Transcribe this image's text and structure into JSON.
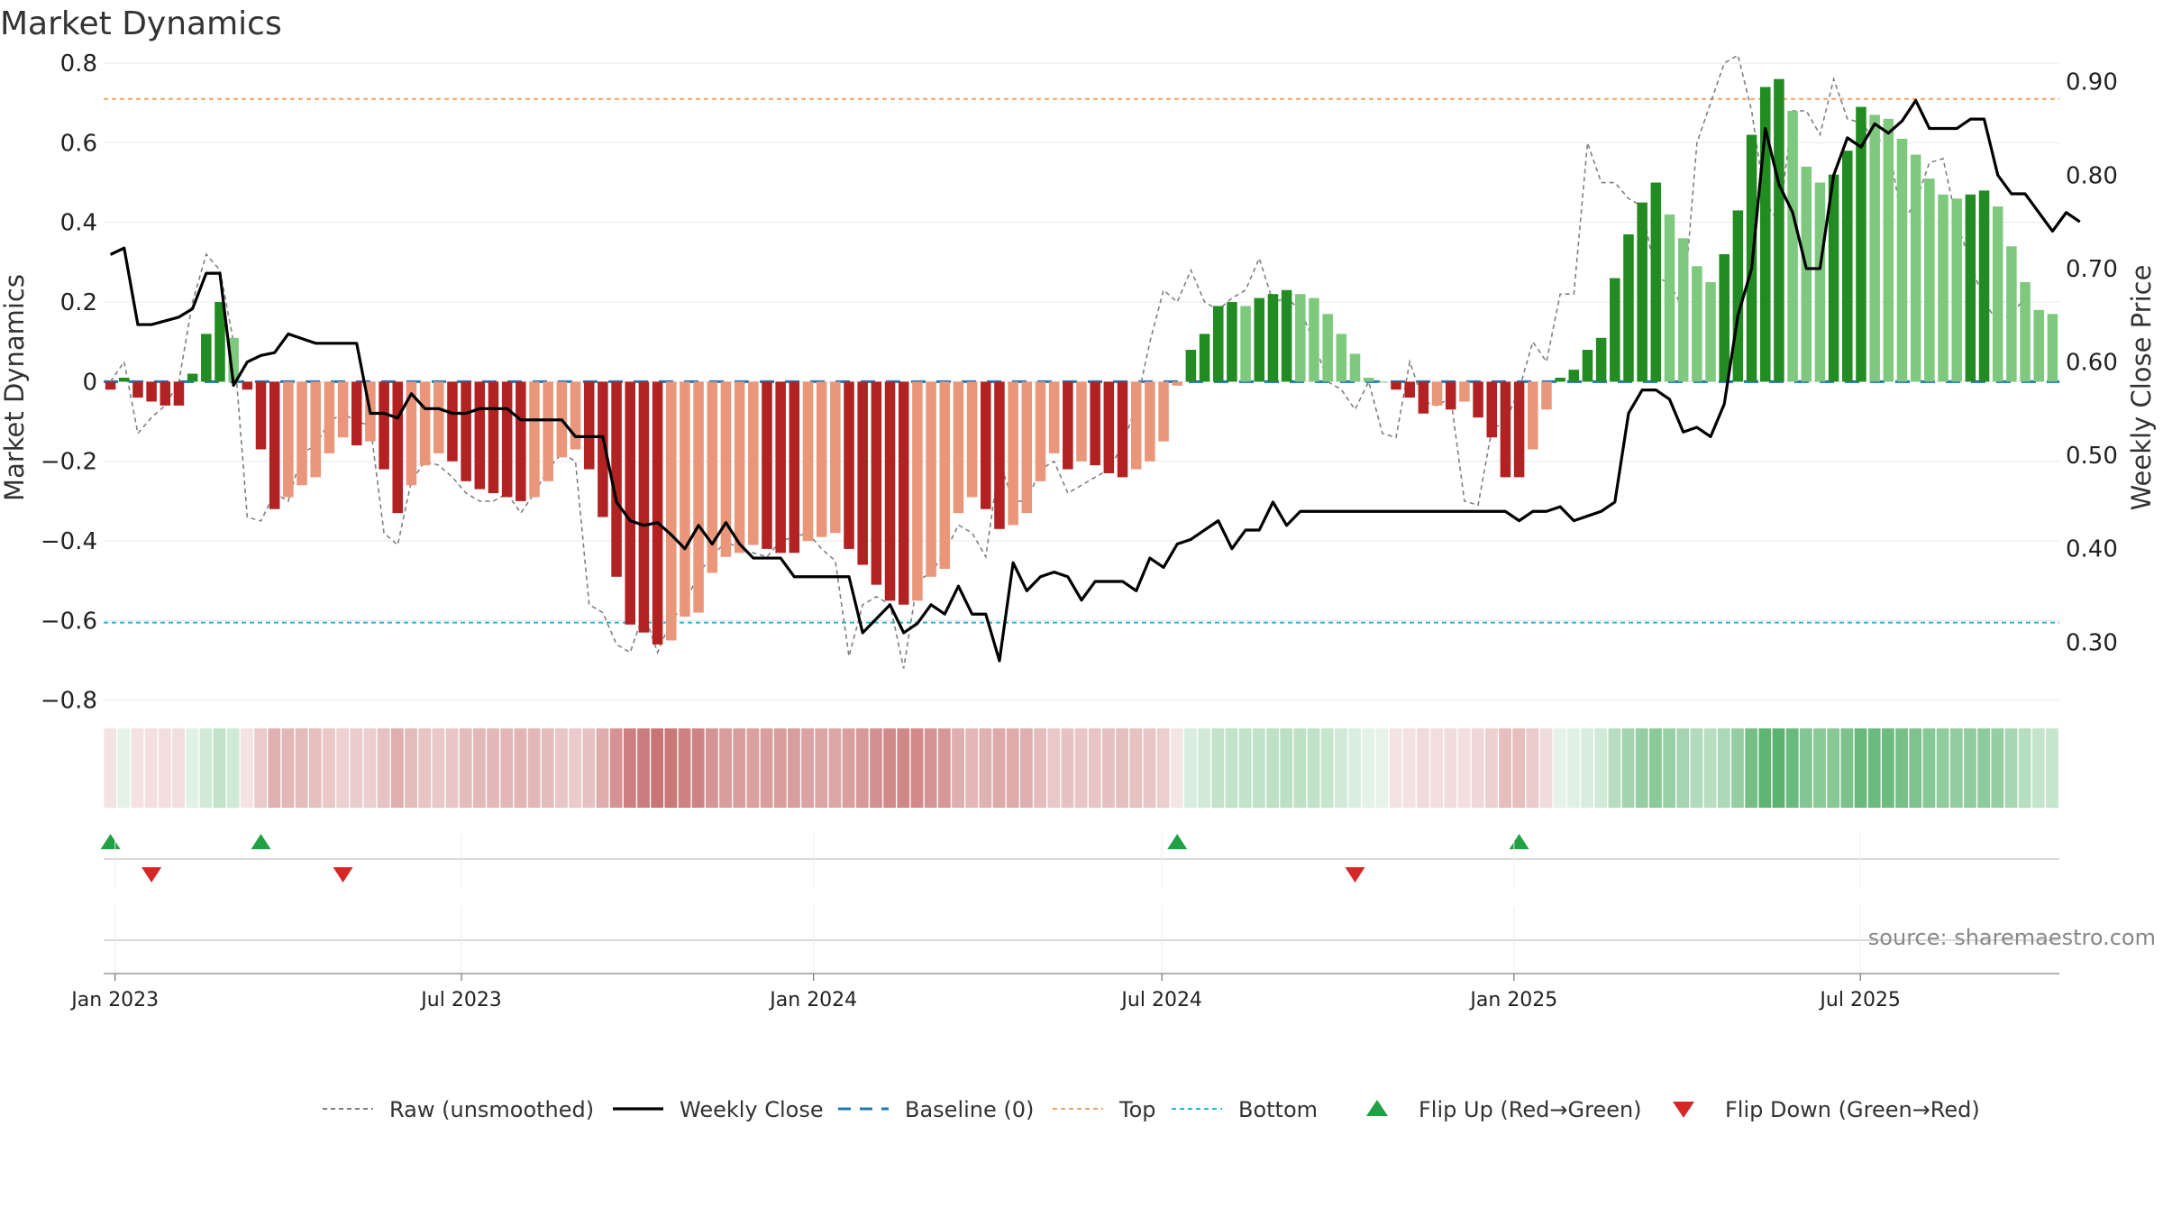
{
  "title": "Market Dynamics",
  "source": "source: sharemaestro.com",
  "colors": {
    "strong_green": "#228B22",
    "light_green": "#7FC97F",
    "strong_red": "#B22222",
    "light_red": "#E9967A",
    "close": "#000000",
    "raw": "#808080",
    "baseline": "#1F77B4",
    "top": "#F4A460",
    "bottom": "#17BECF",
    "flip_up": "#22A045",
    "flip_down": "#D62728",
    "heat_green": "#2E9E48",
    "heat_red": "#B23B3B"
  },
  "chart_data": {
    "type": "bar",
    "title": "Market Dynamics",
    "ylabel": "Market Dynamics",
    "y2label": "Weekly Close Price",
    "ylim": [
      -0.83,
      0.8
    ],
    "y2lim": [
      0.225,
      0.92
    ],
    "yticks": [
      "0.8",
      "0.6",
      "0.4",
      "0.2",
      "0",
      "−0.2",
      "−0.4",
      "−0.6",
      "−0.8"
    ],
    "yticks_values": [
      0.8,
      0.6,
      0.4,
      0.2,
      0,
      -0.2,
      -0.4,
      -0.6,
      -0.8
    ],
    "y2ticks": [
      "0.90",
      "0.80",
      "0.70",
      "0.60",
      "0.50",
      "0.40",
      "0.30"
    ],
    "y2ticks_values": [
      0.9,
      0.8,
      0.7,
      0.6,
      0.5,
      0.4,
      0.3
    ],
    "x_start": "2022-12-26",
    "x_end": "2025-10-13",
    "xticks": [
      {
        "label": "Jan 2023",
        "date": "2023-01-01"
      },
      {
        "label": "Jul 2023",
        "date": "2023-07-01"
      },
      {
        "label": "Jan 2024",
        "date": "2024-01-01"
      },
      {
        "label": "Jul 2024",
        "date": "2024-07-01"
      },
      {
        "label": "Jan 2025",
        "date": "2025-01-01"
      },
      {
        "label": "Jul 2025",
        "date": "2025-07-01"
      }
    ],
    "top": 0.71,
    "bottom": -0.605,
    "baseline": 0,
    "grid": true,
    "legend_position": "bottom",
    "legend": [
      {
        "key": "raw",
        "label": "Raw (unsmoothed)"
      },
      {
        "key": "close",
        "label": "Weekly Close"
      },
      {
        "key": "baseline",
        "label": "Baseline (0)"
      },
      {
        "key": "top",
        "label": "Top"
      },
      {
        "key": "bottom",
        "label": "Bottom"
      },
      {
        "key": "flip_up",
        "label": "Flip Up (Red→Green)"
      },
      {
        "key": "flip_down",
        "label": "Flip Down (Green→Red)"
      }
    ],
    "flip_up_dates": [
      "2023-01-02",
      "2023-03-20",
      "2024-07-08",
      "2025-01-06"
    ],
    "flip_down_dates": [
      "2023-01-23",
      "2023-05-01",
      "2024-10-07"
    ],
    "series": [
      {
        "name": "Market Dynamics",
        "values": [
          -0.02,
          0.01,
          -0.04,
          -0.05,
          -0.06,
          -0.06,
          0.02,
          0.12,
          0.2,
          0.11,
          -0.02,
          -0.17,
          -0.32,
          -0.29,
          -0.26,
          -0.24,
          -0.18,
          -0.14,
          -0.16,
          -0.15,
          -0.22,
          -0.33,
          -0.26,
          -0.21,
          -0.18,
          -0.2,
          -0.25,
          -0.27,
          -0.28,
          -0.29,
          -0.3,
          -0.29,
          -0.25,
          -0.19,
          -0.17,
          -0.22,
          -0.34,
          -0.49,
          -0.61,
          -0.63,
          -0.66,
          -0.65,
          -0.59,
          -0.58,
          -0.48,
          -0.44,
          -0.43,
          -0.41,
          -0.42,
          -0.43,
          -0.43,
          -0.4,
          -0.39,
          -0.38,
          -0.42,
          -0.46,
          -0.51,
          -0.55,
          -0.56,
          -0.55,
          -0.49,
          -0.47,
          -0.33,
          -0.29,
          -0.32,
          -0.37,
          -0.36,
          -0.33,
          -0.25,
          -0.18,
          -0.22,
          -0.2,
          -0.21,
          -0.23,
          -0.24,
          -0.22,
          -0.2,
          -0.15,
          -0.01,
          0.08,
          0.12,
          0.19,
          0.2,
          0.19,
          0.21,
          0.22,
          0.23,
          0.22,
          0.21,
          0.17,
          0.12,
          0.07,
          0.01,
          0.0,
          -0.02,
          -0.04,
          -0.08,
          -0.06,
          -0.07,
          -0.05,
          -0.09,
          -0.14,
          -0.24,
          -0.24,
          -0.17,
          -0.07,
          0.01,
          0.03,
          0.08,
          0.11,
          0.26,
          0.37,
          0.45,
          0.5,
          0.42,
          0.36,
          0.29,
          0.25,
          0.32,
          0.43,
          0.62,
          0.74,
          0.76,
          0.68,
          0.54,
          0.5,
          0.52,
          0.58,
          0.69,
          0.67,
          0.66,
          0.61,
          0.57,
          0.51,
          0.47,
          0.46,
          0.47,
          0.48,
          0.44,
          0.34,
          0.25,
          0.18,
          0.17
        ]
      },
      {
        "name": "Raw (unsmoothed)",
        "values": [
          0.0,
          0.05,
          -0.13,
          -0.09,
          -0.06,
          0.0,
          0.2,
          0.32,
          0.28,
          0.1,
          -0.34,
          -0.35,
          -0.28,
          -0.3,
          -0.18,
          -0.16,
          -0.1,
          -0.08,
          -0.1,
          -0.11,
          -0.38,
          -0.41,
          -0.25,
          -0.2,
          -0.21,
          -0.24,
          -0.28,
          -0.3,
          -0.3,
          -0.28,
          -0.33,
          -0.28,
          -0.22,
          -0.18,
          -0.2,
          -0.56,
          -0.58,
          -0.66,
          -0.68,
          -0.58,
          -0.68,
          -0.6,
          -0.56,
          -0.48,
          -0.44,
          -0.4,
          -0.42,
          -0.43,
          -0.44,
          -0.4,
          -0.39,
          -0.38,
          -0.42,
          -0.45,
          -0.69,
          -0.56,
          -0.54,
          -0.56,
          -0.72,
          -0.5,
          -0.48,
          -0.43,
          -0.36,
          -0.38,
          -0.44,
          -0.2,
          -0.3,
          -0.3,
          -0.22,
          -0.2,
          -0.28,
          -0.26,
          -0.24,
          -0.22,
          -0.16,
          -0.06,
          0.1,
          0.23,
          0.2,
          0.28,
          0.2,
          0.18,
          0.21,
          0.23,
          0.31,
          0.2,
          0.21,
          0.18,
          0.1,
          0.0,
          -0.02,
          -0.07,
          0.0,
          -0.13,
          -0.14,
          0.05,
          -0.05,
          -0.06,
          -0.04,
          -0.3,
          -0.31,
          -0.12,
          -0.1,
          -0.02,
          0.1,
          0.05,
          0.22,
          0.22,
          0.6,
          0.5,
          0.5,
          0.46,
          0.44,
          0.26,
          0.25,
          0.18,
          0.6,
          0.7,
          0.8,
          0.82,
          0.68,
          0.45,
          0.4,
          0.68,
          0.68,
          0.62,
          0.76,
          0.66,
          0.65,
          0.61,
          0.6,
          0.4,
          0.45,
          0.55,
          0.56,
          0.4,
          0.3,
          0.2,
          0.15,
          0.17,
          0.21
        ]
      },
      {
        "name": "Weekly Close",
        "values": [
          0.715,
          0.722,
          0.64,
          0.64,
          0.644,
          0.648,
          0.657,
          0.695,
          0.695,
          0.575,
          0.6,
          0.607,
          0.61,
          0.63,
          0.625,
          0.62,
          0.62,
          0.62,
          0.62,
          0.545,
          0.545,
          0.54,
          0.566,
          0.55,
          0.55,
          0.545,
          0.545,
          0.55,
          0.55,
          0.55,
          0.538,
          0.538,
          0.538,
          0.538,
          0.52,
          0.52,
          0.52,
          0.45,
          0.43,
          0.425,
          0.428,
          0.415,
          0.4,
          0.425,
          0.405,
          0.428,
          0.405,
          0.39,
          0.39,
          0.39,
          0.37,
          0.37,
          0.37,
          0.37,
          0.37,
          0.31,
          0.325,
          0.34,
          0.31,
          0.32,
          0.34,
          0.33,
          0.36,
          0.33,
          0.33,
          0.28,
          0.385,
          0.355,
          0.37,
          0.375,
          0.37,
          0.345,
          0.365,
          0.365,
          0.365,
          0.355,
          0.39,
          0.38,
          0.405,
          0.41,
          0.42,
          0.43,
          0.4,
          0.42,
          0.42,
          0.45,
          0.425,
          0.44,
          0.44,
          0.44,
          0.44,
          0.44,
          0.44,
          0.44,
          0.44,
          0.44,
          0.44,
          0.44,
          0.44,
          0.44,
          0.44,
          0.44,
          0.44,
          0.43,
          0.44,
          0.44,
          0.445,
          0.43,
          0.435,
          0.44,
          0.45,
          0.545,
          0.57,
          0.57,
          0.56,
          0.525,
          0.53,
          0.52,
          0.555,
          0.65,
          0.7,
          0.85,
          0.79,
          0.76,
          0.7,
          0.7,
          0.8,
          0.84,
          0.83,
          0.855,
          0.845,
          0.858,
          0.88,
          0.85,
          0.85,
          0.85,
          0.86,
          0.86,
          0.8,
          0.78,
          0.78,
          0.76,
          0.74,
          0.76,
          0.75
        ]
      }
    ]
  }
}
